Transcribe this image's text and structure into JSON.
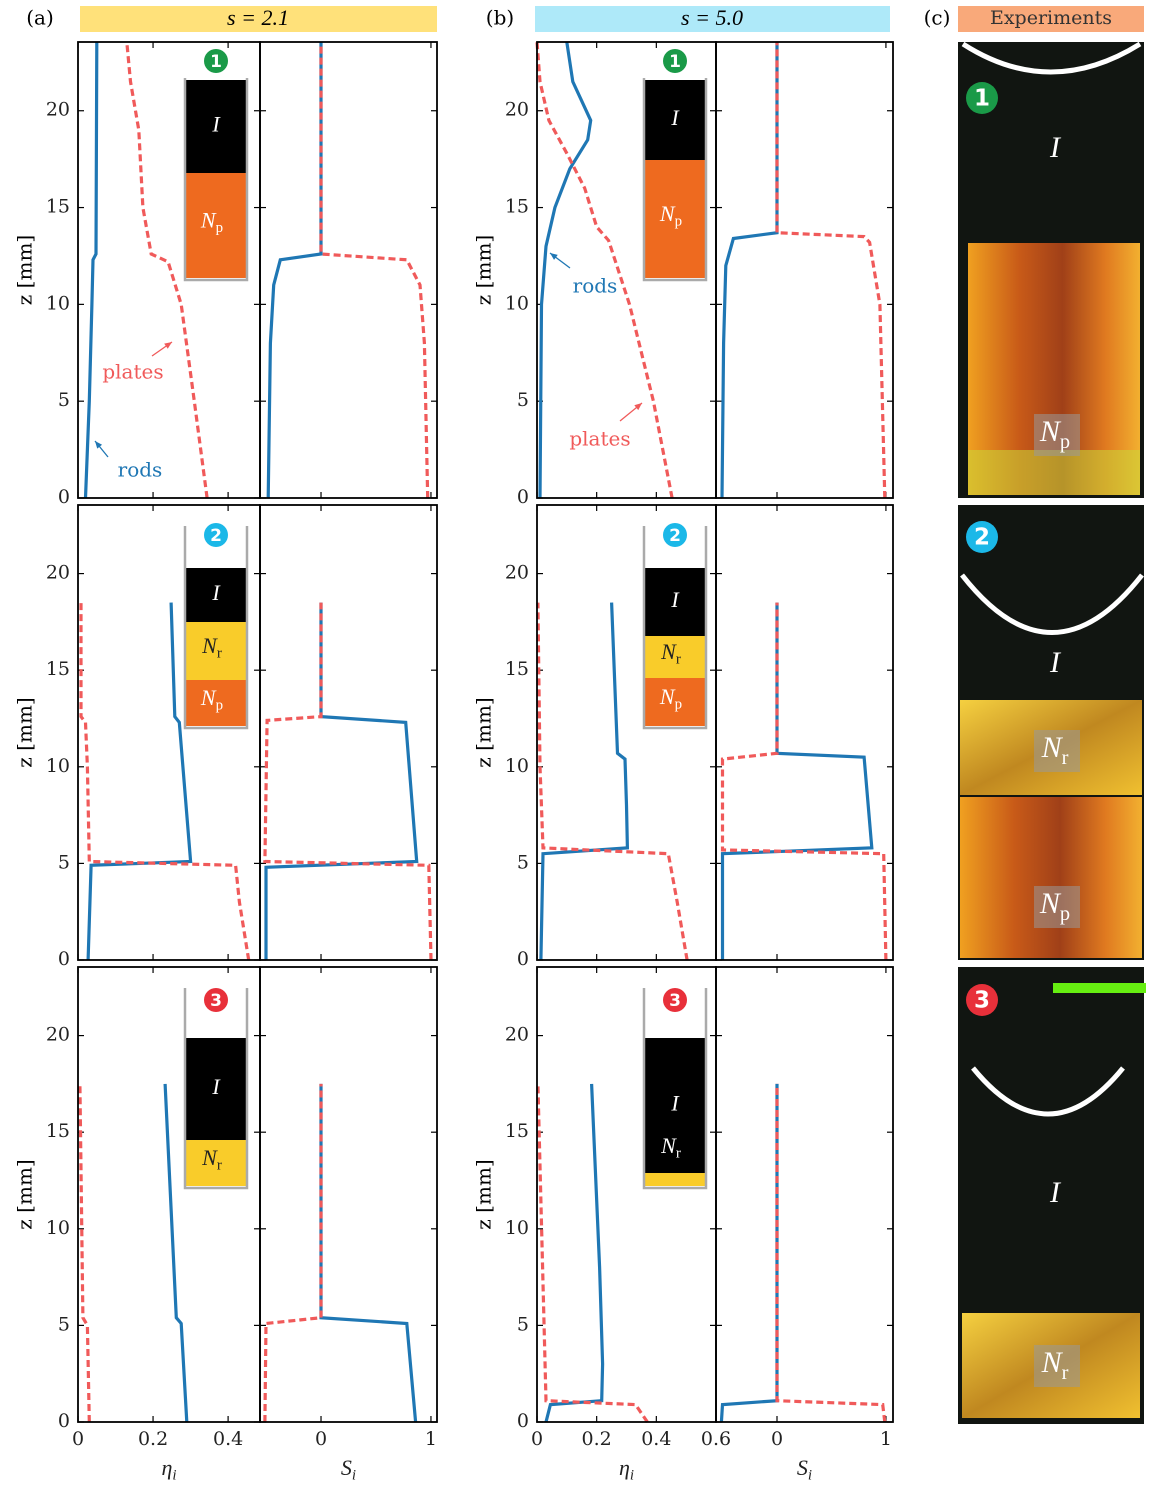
{
  "columns": [
    {
      "label": "(a)",
      "header": "s = 2.1"
    },
    {
      "label": "(b)",
      "header": "s = 5.0"
    },
    {
      "label": "(c)",
      "header": "Experiments"
    }
  ],
  "phases": {
    "I": "I",
    "Np": {
      "symbol": "N",
      "subscript": "p"
    },
    "Nr": {
      "symbol": "N",
      "subscript": "r"
    }
  },
  "states": [
    "1",
    "2",
    "3"
  ],
  "chart_data": [
    {
      "type": "line",
      "xlim": [
        0,
        0.485
      ],
      "ylim": [
        0,
        23.55
      ],
      "xticks": [
        0,
        0.2,
        0.4
      ],
      "yticks": [
        0,
        5,
        10,
        15,
        20
      ],
      "xtick_labels": false,
      "ytick_labels": true,
      "ylabel": "z [mm]",
      "series": [
        {
          "color": "#1f77b4",
          "dash": false,
          "x": [
            0.02,
            0.03,
            0.037,
            0.04,
            0.048,
            0.05
          ],
          "y": [
            0,
            5,
            10,
            12.3,
            12.6,
            23.55
          ]
        },
        {
          "color": "#f05a5a",
          "dash": true,
          "x": [
            0.344,
            0.31,
            0.275,
            0.24,
            0.195,
            0.173,
            0.162,
            0.14,
            0.13
          ],
          "y": [
            0,
            5,
            10,
            12.2,
            12.6,
            15,
            19,
            21.5,
            23.55
          ]
        }
      ],
      "annotations": [
        {
          "text": "plates",
          "color": "#f05a5a"
        },
        {
          "text": "rods",
          "color": "#1f77b4"
        }
      ]
    },
    {
      "type": "line",
      "xlim": [
        -0.555,
        1.055
      ],
      "ylim": [
        0,
        23.55
      ],
      "xticks": [
        0,
        1
      ],
      "yticks": [
        0,
        5,
        10,
        15,
        20
      ],
      "xtick_labels": false,
      "ytick_labels": false,
      "series": [
        {
          "color": "#1f77b4",
          "dash": false,
          "x": [
            -0.48,
            -0.46,
            -0.43,
            -0.37,
            0,
            0
          ],
          "y": [
            0,
            8,
            11,
            12.3,
            12.6,
            23.55
          ]
        },
        {
          "color": "#f05a5a",
          "dash": true,
          "x": [
            0.97,
            0.94,
            0.9,
            0.78,
            0,
            0
          ],
          "y": [
            0,
            8,
            11,
            12.3,
            12.6,
            23.55
          ]
        }
      ]
    },
    {
      "type": "line",
      "xlim": [
        0,
        0.6
      ],
      "ylim": [
        0,
        23.55
      ],
      "xticks": [
        0,
        0.2,
        0.4,
        0.6
      ],
      "yticks": [
        0,
        5,
        10,
        15,
        20
      ],
      "xtick_labels": false,
      "ytick_labels": true,
      "ylabel": "z [mm]",
      "series": [
        {
          "color": "#1f77b4",
          "dash": false,
          "x": [
            0.01,
            0.015,
            0.03,
            0.06,
            0.11,
            0.17,
            0.18,
            0.12,
            0.1
          ],
          "y": [
            0,
            10,
            13,
            15,
            17,
            18.5,
            19.5,
            21.5,
            23.55
          ]
        },
        {
          "color": "#f05a5a",
          "dash": true,
          "x": [
            0.453,
            0.39,
            0.31,
            0.24,
            0.2,
            0.16,
            0.1,
            0.04,
            0.01,
            0
          ],
          "y": [
            0,
            5,
            10,
            13.3,
            14,
            16,
            17.8,
            19.5,
            21.5,
            23.55
          ]
        }
      ],
      "annotations": [
        {
          "text": "rods",
          "color": "#1f77b4"
        },
        {
          "text": "plates",
          "color": "#f05a5a"
        }
      ]
    },
    {
      "type": "line",
      "xlim": [
        -0.56,
        1.065
      ],
      "ylim": [
        0,
        23.55
      ],
      "xticks": [
        0,
        1
      ],
      "yticks": [
        0,
        5,
        10,
        15,
        20
      ],
      "xtick_labels": false,
      "ytick_labels": false,
      "series": [
        {
          "color": "#1f77b4",
          "dash": false,
          "x": [
            -0.505,
            -0.49,
            -0.47,
            -0.4,
            0,
            0
          ],
          "y": [
            0,
            8,
            12,
            13.4,
            13.7,
            23.55
          ]
        },
        {
          "color": "#f05a5a",
          "dash": true,
          "x": [
            0.99,
            0.945,
            0.85,
            0.8,
            0,
            0
          ],
          "y": [
            0,
            10,
            13.2,
            13.5,
            13.7,
            23.55
          ]
        }
      ]
    },
    {
      "type": "line",
      "xlim": [
        0,
        0.485
      ],
      "ylim": [
        0,
        23.55
      ],
      "xticks": [
        0,
        0.2,
        0.4
      ],
      "yticks": [
        0,
        5,
        10,
        15,
        20
      ],
      "xtick_labels": false,
      "ytick_labels": true,
      "ylabel": "z [mm]",
      "series": [
        {
          "color": "#1f77b4",
          "dash": false,
          "x": [
            0.027,
            0.035,
            0.3,
            0.27,
            0.258,
            0.248
          ],
          "y": [
            0,
            4.9,
            5.1,
            12.3,
            12.6,
            18.5
          ]
        },
        {
          "color": "#f05a5a",
          "dash": true,
          "x": [
            0.455,
            0.43,
            0.42,
            0.03,
            0.025,
            0.02,
            0.008,
            0.008
          ],
          "y": [
            0,
            3,
            4.9,
            5.1,
            10,
            12.3,
            12.6,
            18.5
          ]
        }
      ]
    },
    {
      "type": "line",
      "xlim": [
        -0.555,
        1.055
      ],
      "ylim": [
        0,
        23.55
      ],
      "xticks": [
        0,
        1
      ],
      "yticks": [
        0,
        5,
        10,
        15,
        20
      ],
      "xtick_labels": false,
      "ytick_labels": false,
      "series": [
        {
          "color": "#1f77b4",
          "dash": false,
          "x": [
            -0.5,
            -0.5,
            0.87,
            0.77,
            0,
            0
          ],
          "y": [
            0,
            4.8,
            5.1,
            12.3,
            12.6,
            18.5
          ]
        },
        {
          "color": "#f05a5a",
          "dash": true,
          "x": [
            1,
            0.98,
            -0.51,
            -0.49,
            0,
            0
          ],
          "y": [
            0,
            4.9,
            5.1,
            12.4,
            12.6,
            18.5
          ]
        }
      ]
    },
    {
      "type": "line",
      "xlim": [
        0,
        0.6
      ],
      "ylim": [
        0,
        23.55
      ],
      "xticks": [
        0,
        0.2,
        0.4,
        0.6
      ],
      "yticks": [
        0,
        5,
        10,
        15,
        20
      ],
      "xtick_labels": false,
      "ytick_labels": true,
      "ylabel": "z [mm]",
      "series": [
        {
          "color": "#1f77b4",
          "dash": false,
          "x": [
            0.013,
            0.02,
            0.303,
            0.3,
            0.295,
            0.27,
            0.25
          ],
          "y": [
            0,
            5.5,
            5.8,
            8,
            10.4,
            10.7,
            18.5
          ]
        },
        {
          "color": "#f05a5a",
          "dash": true,
          "x": [
            0.503,
            0.47,
            0.44,
            0.02,
            0.01,
            0.003
          ],
          "y": [
            0,
            3,
            5.5,
            5.8,
            10,
            18.5
          ]
        }
      ]
    },
    {
      "type": "line",
      "xlim": [
        -0.56,
        1.065
      ],
      "ylim": [
        0,
        23.55
      ],
      "xticks": [
        0,
        1
      ],
      "yticks": [
        0,
        5,
        10,
        15,
        20
      ],
      "xtick_labels": false,
      "ytick_labels": false,
      "series": [
        {
          "color": "#1f77b4",
          "dash": false,
          "x": [
            -0.5,
            -0.5,
            0.87,
            0.8,
            0,
            0
          ],
          "y": [
            0,
            5.5,
            5.8,
            10.5,
            10.7,
            18.5
          ]
        },
        {
          "color": "#f05a5a",
          "dash": true,
          "x": [
            1,
            0.98,
            -0.5,
            -0.5,
            0,
            0
          ],
          "y": [
            0,
            5.5,
            5.7,
            10.4,
            10.7,
            18.5
          ]
        }
      ]
    },
    {
      "type": "line",
      "xlim": [
        0,
        0.485
      ],
      "ylim": [
        0,
        23.55
      ],
      "xticks": [
        0,
        0.2,
        0.4
      ],
      "yticks": [
        0,
        5,
        10,
        15,
        20
      ],
      "xtick_labels": true,
      "ytick_labels": true,
      "ylabel": "z [mm]",
      "xlabel": {
        "symbol": "η",
        "subscript": "i"
      },
      "series": [
        {
          "color": "#1f77b4",
          "dash": false,
          "x": [
            0.29,
            0.275,
            0.262,
            0.232
          ],
          "y": [
            0,
            5.1,
            5.4,
            17.5
          ]
        },
        {
          "color": "#f05a5a",
          "dash": true,
          "x": [
            0.03,
            0.025,
            0.013,
            0.005
          ],
          "y": [
            0,
            5,
            5.4,
            17.5
          ]
        }
      ]
    },
    {
      "type": "line",
      "xlim": [
        -0.555,
        1.055
      ],
      "ylim": [
        0,
        23.55
      ],
      "xticks": [
        0,
        1
      ],
      "yticks": [
        0,
        5,
        10,
        15,
        20
      ],
      "xtick_labels": true,
      "ytick_labels": false,
      "xlabel": {
        "symbol": "S",
        "subscript": "i"
      },
      "series": [
        {
          "color": "#1f77b4",
          "dash": false,
          "x": [
            0.86,
            0.78,
            0,
            0
          ],
          "y": [
            0,
            5.1,
            5.4,
            17.5
          ]
        },
        {
          "color": "#f05a5a",
          "dash": true,
          "x": [
            -0.51,
            -0.5,
            0,
            0
          ],
          "y": [
            0,
            5.1,
            5.4,
            17.5
          ]
        }
      ]
    },
    {
      "type": "line",
      "xlim": [
        0,
        0.6
      ],
      "ylim": [
        0,
        23.55
      ],
      "xticks": [
        0,
        0.2,
        0.4,
        0.6
      ],
      "yticks": [
        0,
        5,
        10,
        15,
        20
      ],
      "xtick_labels": true,
      "ytick_labels": true,
      "ylabel": "z [mm]",
      "xlabel": {
        "symbol": "η",
        "subscript": "i"
      },
      "series": [
        {
          "color": "#1f77b4",
          "dash": false,
          "x": [
            0.03,
            0.045,
            0.217,
            0.22,
            0.21,
            0.183
          ],
          "y": [
            0,
            0.9,
            1.1,
            3,
            8,
            17.5
          ]
        },
        {
          "color": "#f05a5a",
          "dash": true,
          "x": [
            0.37,
            0.33,
            0.03,
            0.003
          ],
          "y": [
            0,
            0.9,
            1.1,
            17.5
          ]
        }
      ]
    },
    {
      "type": "line",
      "xlim": [
        -0.56,
        1.065
      ],
      "ylim": [
        0,
        23.55
      ],
      "xticks": [
        0,
        1
      ],
      "yticks": [
        0,
        5,
        10,
        15,
        20
      ],
      "xtick_labels": true,
      "ytick_labels": false,
      "xlabel": {
        "symbol": "S",
        "subscript": "i"
      },
      "series": [
        {
          "color": "#1f77b4",
          "dash": false,
          "x": [
            -0.51,
            -0.5,
            0,
            0
          ],
          "y": [
            0,
            0.9,
            1.1,
            17.5
          ]
        },
        {
          "color": "#f05a5a",
          "dash": true,
          "x": [
            0.99,
            0.97,
            0,
            0
          ],
          "y": [
            0,
            0.9,
            1.1,
            17.5
          ]
        }
      ]
    }
  ]
}
